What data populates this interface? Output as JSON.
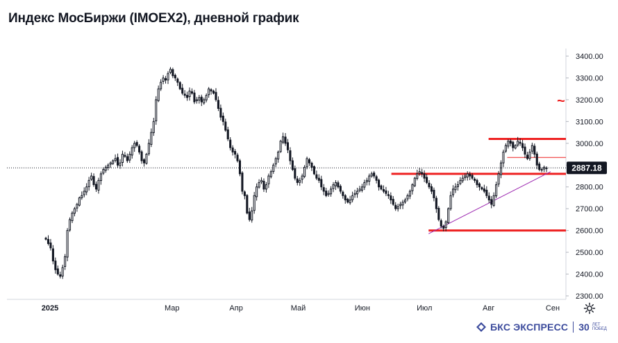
{
  "title": "Индекс МосБиржи (IMOEX2), дневной график",
  "brand": {
    "name": "БКС ЭКСПРЕСС",
    "years_number": "30",
    "years_text": "ЛЕТ ПОБЕД"
  },
  "colors": {
    "up": "#131722",
    "down": "#131722",
    "level": "#ee2020",
    "trend": "#9c27b0",
    "price_tag_bg": "#131722"
  },
  "chart_data": {
    "type": "candlestick",
    "title": "Индекс МосБиржи (IMOEX2), дневной график",
    "ylim": [
      2300,
      3400
    ],
    "yticks": [
      "3400.00",
      "3300.00",
      "3200.00",
      "3100.00",
      "3000.00",
      "2900.00",
      "2800.00",
      "2700.00",
      "2600.00",
      "2500.00",
      "2400.00",
      "2300.00"
    ],
    "xticks": [
      {
        "label": "2025",
        "bold": true,
        "date": "2025-01-01"
      },
      {
        "label": "Мар",
        "bold": false,
        "date": "2025-03-01"
      },
      {
        "label": "Апр",
        "bold": false,
        "date": "2025-04-01"
      },
      {
        "label": "Май",
        "bold": false,
        "date": "2025-05-01"
      },
      {
        "label": "Июн",
        "bold": false,
        "date": "2025-06-01"
      },
      {
        "label": "Июл",
        "bold": false,
        "date": "2025-07-01"
      },
      {
        "label": "Авг",
        "bold": false,
        "date": "2025-08-01"
      },
      {
        "label": "Сен",
        "bold": false,
        "date": "2025-09-01"
      }
    ],
    "last_price": "2887.18",
    "last_value": 2887.18,
    "closes": [
      2560,
      2540,
      2520,
      2460,
      2420,
      2400,
      2390,
      2430,
      2480,
      2600,
      2650,
      2680,
      2700,
      2720,
      2750,
      2760,
      2780,
      2800,
      2830,
      2850,
      2810,
      2790,
      2830,
      2860,
      2880,
      2890,
      2900,
      2910,
      2920,
      2930,
      2900,
      2910,
      2950,
      2940,
      2920,
      2950,
      2980,
      3000,
      2990,
      2960,
      2920,
      2910,
      2950,
      3000,
      3050,
      3100,
      3200,
      3250,
      3280,
      3300,
      3290,
      3320,
      3340,
      3310,
      3300,
      3280,
      3250,
      3230,
      3220,
      3210,
      3240,
      3230,
      3190,
      3200,
      3210,
      3190,
      3200,
      3220,
      3250,
      3240,
      3230,
      3200,
      3160,
      3120,
      3100,
      3060,
      3020,
      2980,
      2960,
      2950,
      2920,
      2860,
      2780,
      2760,
      2680,
      2650,
      2690,
      2760,
      2800,
      2820,
      2830,
      2790,
      2810,
      2850,
      2870,
      2900,
      2930,
      2960,
      3010,
      3030,
      3000,
      2970,
      2920,
      2880,
      2840,
      2820,
      2830,
      2850,
      2890,
      2930,
      2910,
      2890,
      2860,
      2840,
      2830,
      2800,
      2780,
      2760,
      2770,
      2790,
      2810,
      2820,
      2800,
      2780,
      2760,
      2740,
      2730,
      2740,
      2760,
      2770,
      2780,
      2790,
      2800,
      2820,
      2830,
      2850,
      2860,
      2850,
      2830,
      2800,
      2790,
      2780,
      2770,
      2760,
      2740,
      2720,
      2700,
      2710,
      2720,
      2730,
      2740,
      2760,
      2780,
      2810,
      2840,
      2860,
      2870,
      2860,
      2840,
      2820,
      2800,
      2780,
      2750,
      2700,
      2650,
      2620,
      2610,
      2640,
      2700,
      2760,
      2790,
      2800,
      2810,
      2830,
      2840,
      2850,
      2860,
      2850,
      2840,
      2830,
      2810,
      2800,
      2790,
      2780,
      2760,
      2740,
      2720,
      2760,
      2810,
      2860,
      2910,
      2960,
      2990,
      3010,
      3000,
      2980,
      2990,
      3010,
      3000,
      2980,
      2950,
      2930,
      2960,
      2990,
      2950,
      2900,
      2880,
      2880,
      2890,
      2887.18
    ],
    "levels": [
      {
        "value": 3020,
        "from": "2025-08-01",
        "to": "end",
        "weight": "thick"
      },
      {
        "value": 2935,
        "from": "2025-08-10",
        "to": "end",
        "weight": "thin"
      },
      {
        "value": 2860,
        "from": "2025-06-15",
        "to": "end",
        "weight": "thick"
      },
      {
        "value": 2600,
        "from": "2025-07-03",
        "to": "end",
        "weight": "thick"
      }
    ],
    "trendline": {
      "from": {
        "date": "2025-07-03",
        "value": 2585
      },
      "to": {
        "date": "2025-08-31",
        "value": 2870
      }
    },
    "note_symbol": "~"
  }
}
